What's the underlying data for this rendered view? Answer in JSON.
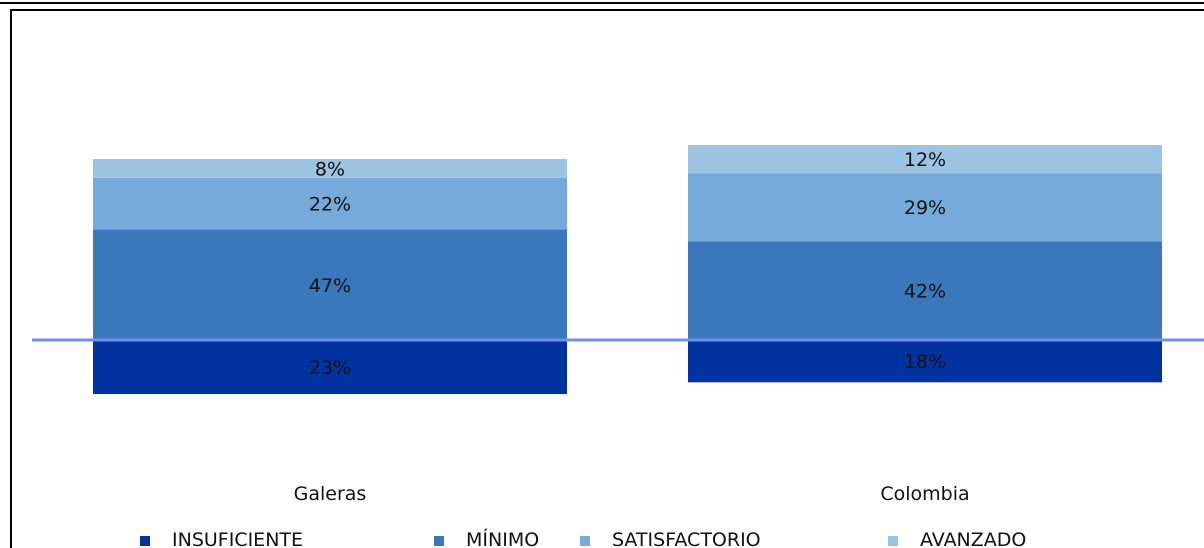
{
  "chart_data": {
    "type": "bar",
    "stacked": true,
    "categories": [
      "Galeras",
      "Colombia"
    ],
    "series": [
      {
        "name": "INSUFICIENTE",
        "color": "#0033A0",
        "values": [
          23,
          18
        ]
      },
      {
        "name": "MÍNIMO",
        "color": "#3A77BB",
        "values": [
          47,
          42
        ]
      },
      {
        "name": "SATISFACTORIO",
        "color": "#76AADB",
        "values": [
          22,
          29
        ]
      },
      {
        "name": "AVANZADO",
        "color": "#9DC3E3",
        "values": [
          8,
          12
        ]
      }
    ],
    "value_labels": [
      [
        "23%",
        "47%",
        "22%",
        "8%"
      ],
      [
        "18%",
        "42%",
        "29%",
        "12%"
      ]
    ],
    "reference_line": {
      "color": "#6F8FF0"
    },
    "legend_position": "bottom",
    "grid": false
  }
}
